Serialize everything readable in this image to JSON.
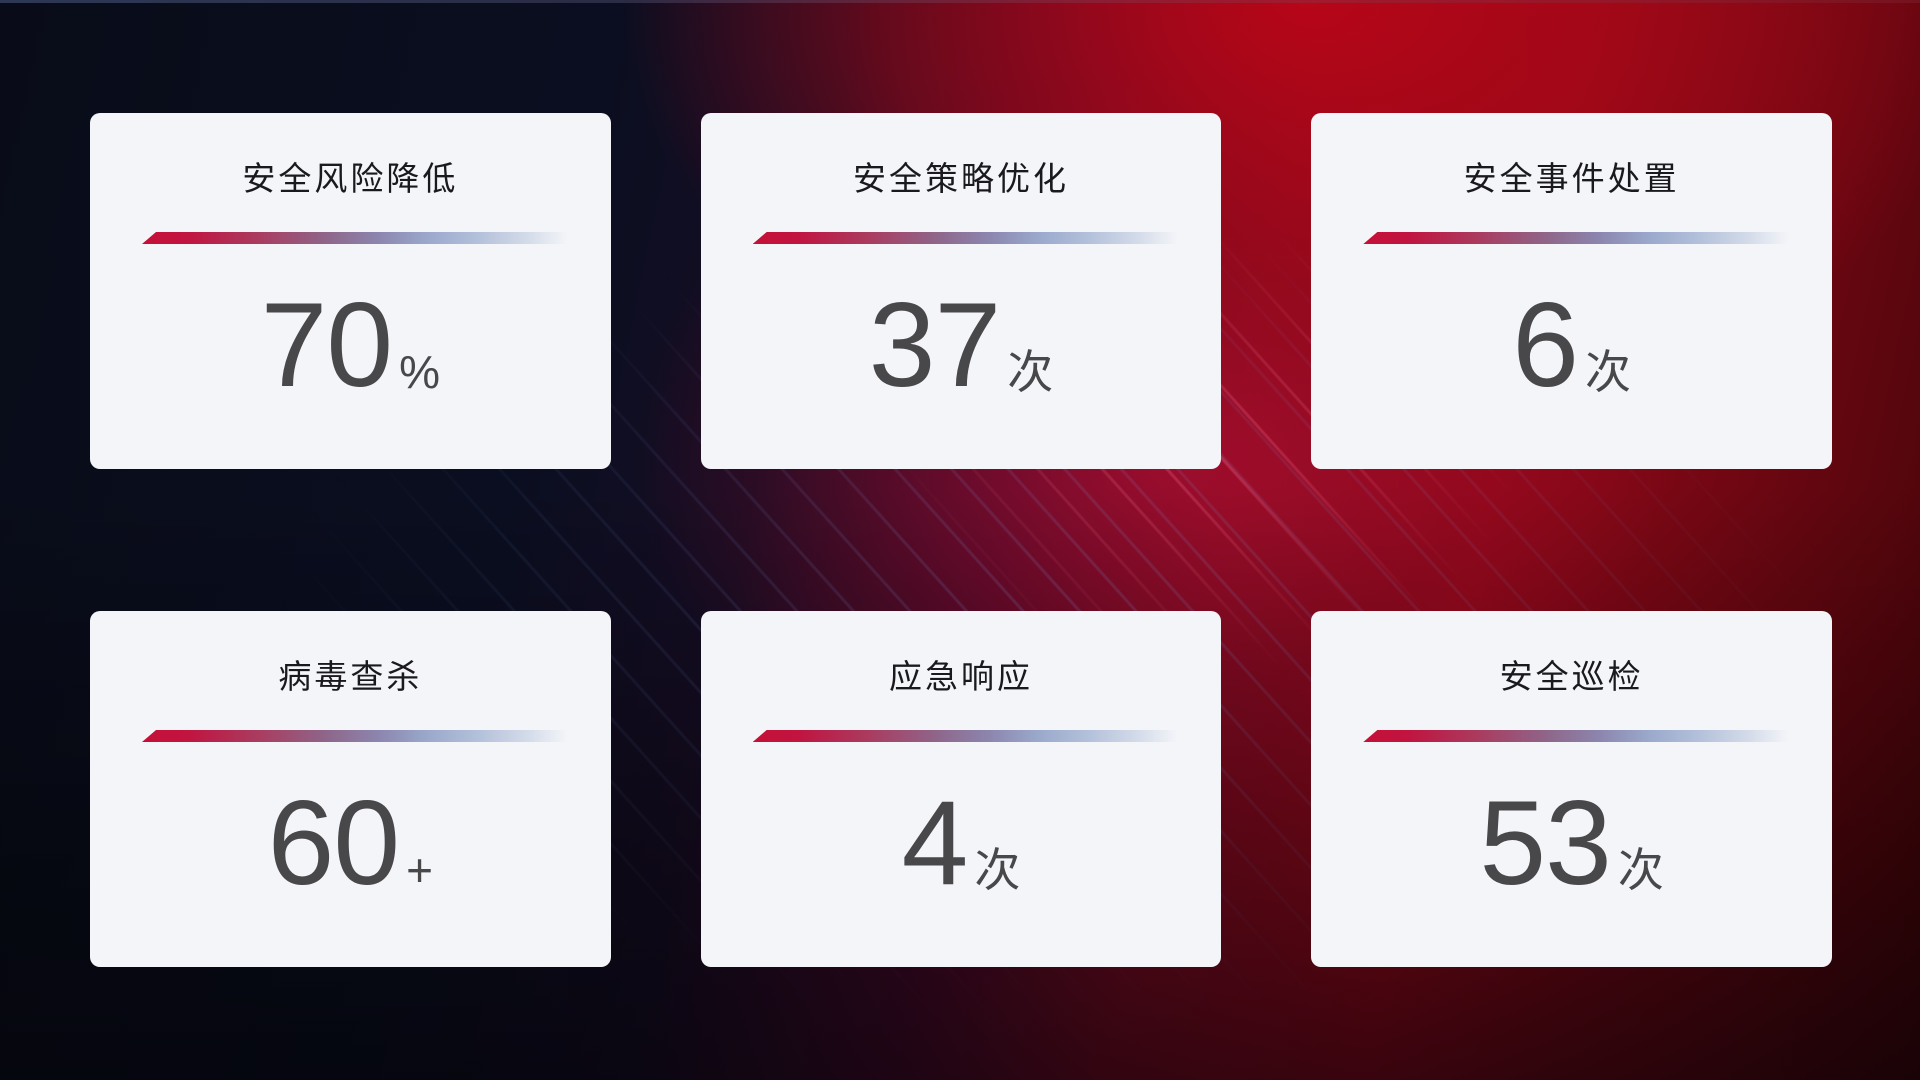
{
  "dashboard": {
    "cards": [
      {
        "title": "安全风险降低",
        "value": "70",
        "unit": "%"
      },
      {
        "title": "安全策略优化",
        "value": "37",
        "unit": "次"
      },
      {
        "title": "安全事件处置",
        "value": "6",
        "unit": "次"
      },
      {
        "title": "病毒查杀",
        "value": "60",
        "unit": "+"
      },
      {
        "title": "应急响应",
        "value": "4",
        "unit": "次"
      },
      {
        "title": "安全巡检",
        "value": "53",
        "unit": "次"
      }
    ],
    "colors": {
      "card_background": "#f4f5f8",
      "title_text": "#1a1a1e",
      "value_text": "#48484b",
      "divider_red": "#c51038",
      "divider_blue": "#9aa8cc",
      "bg_dark_navy": "#0a0e20",
      "bg_red": "#94081a"
    }
  }
}
